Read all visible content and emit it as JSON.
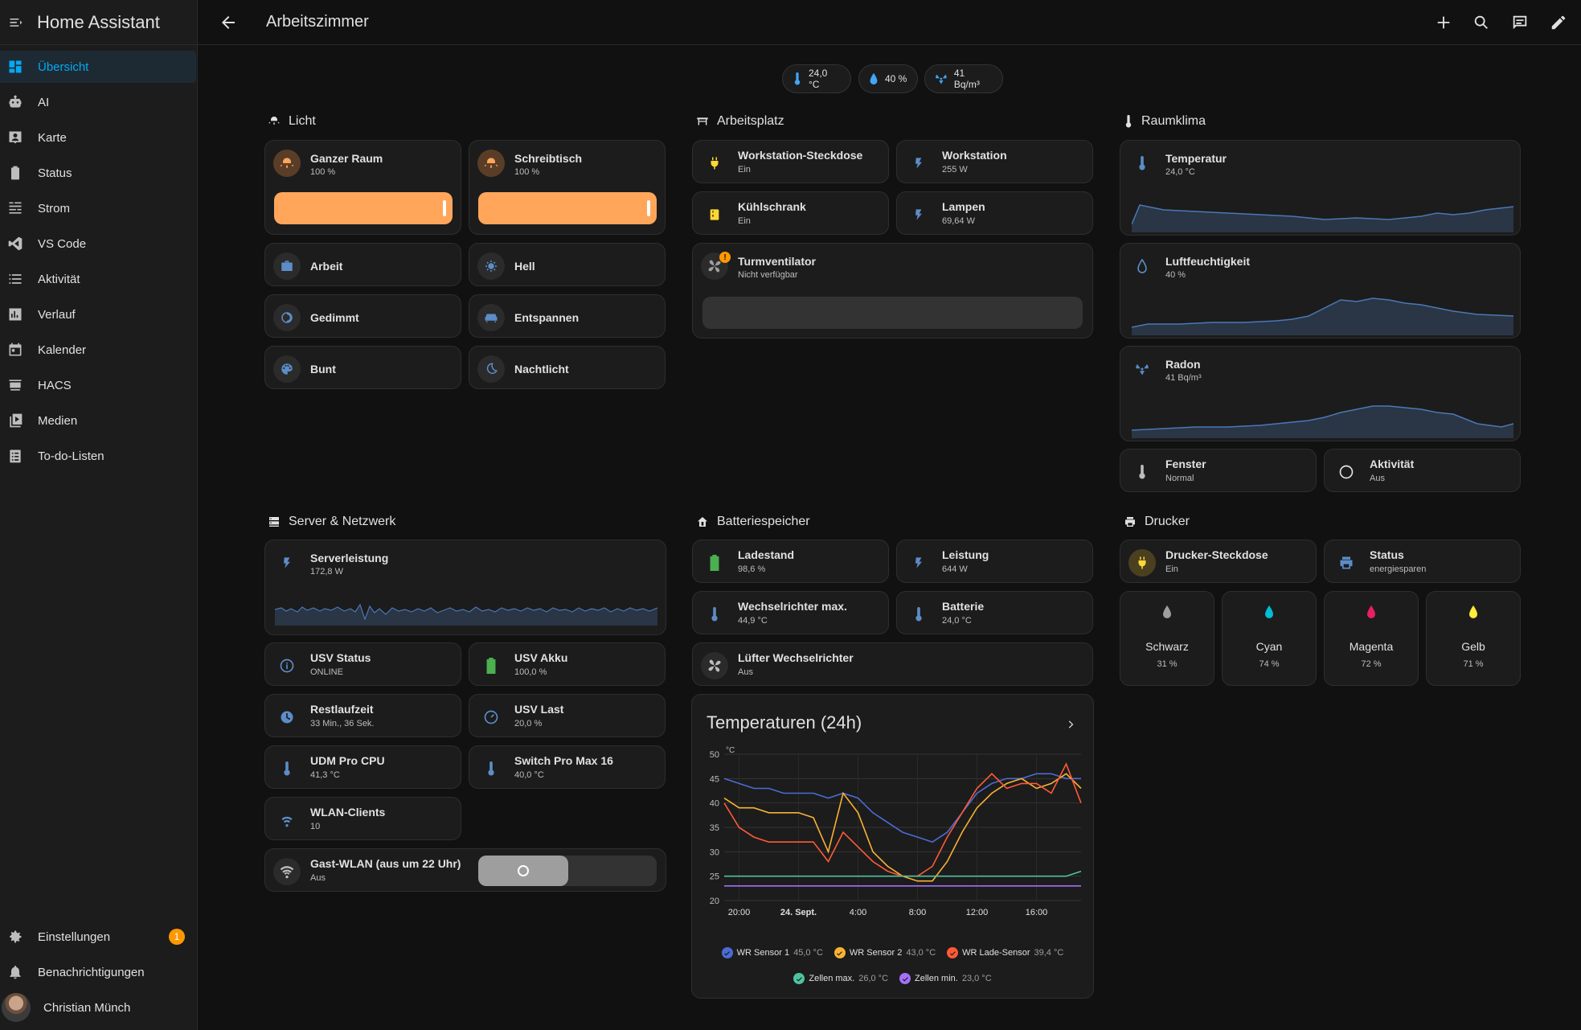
{
  "app": {
    "title": "Home Assistant"
  },
  "sidebar": {
    "items": [
      {
        "label": "Übersicht",
        "icon": "dashboard-icon"
      },
      {
        "label": "AI",
        "icon": "robot-icon"
      },
      {
        "label": "Karte",
        "icon": "map-icon"
      },
      {
        "label": "Status",
        "icon": "battery-icon"
      },
      {
        "label": "Strom",
        "icon": "energy-icon"
      },
      {
        "label": "VS Code",
        "icon": "vscode-icon"
      },
      {
        "label": "Aktivität",
        "icon": "list-icon"
      },
      {
        "label": "Verlauf",
        "icon": "chart-icon"
      },
      {
        "label": "Kalender",
        "icon": "calendar-icon"
      },
      {
        "label": "HACS",
        "icon": "hacs-icon"
      },
      {
        "label": "Medien",
        "icon": "media-icon"
      },
      {
        "label": "To-do-Listen",
        "icon": "todo-icon"
      }
    ],
    "settings": {
      "label": "Einstellungen",
      "badge": "1"
    },
    "notifications": {
      "label": "Benachrichtigungen"
    },
    "user": {
      "name": "Christian Münch"
    }
  },
  "header": {
    "title": "Arbeitszimmer"
  },
  "badges": {
    "temperature": "24,0 °C",
    "humidity": "40 %",
    "radon": "41 Bq/m³"
  },
  "licht": {
    "title": "Licht",
    "ganzer_raum": {
      "name": "Ganzer Raum",
      "state": "100 %",
      "brightness": 100
    },
    "schreibtisch": {
      "name": "Schreibtisch",
      "state": "100 %",
      "brightness": 100
    },
    "scenes": [
      "Arbeit",
      "Hell",
      "Gedimmt",
      "Entspannen",
      "Bunt",
      "Nachtlicht"
    ]
  },
  "arbeitsplatz": {
    "title": "Arbeitsplatz",
    "workstation_steckdose": {
      "name": "Workstation-Steckdose",
      "state": "Ein"
    },
    "workstation": {
      "name": "Workstation",
      "state": "255 W"
    },
    "kuehlschrank": {
      "name": "Kühlschrank",
      "state": "Ein"
    },
    "lampen": {
      "name": "Lampen",
      "state": "69,64 W"
    },
    "turmventilator": {
      "name": "Turmventilator",
      "state": "Nicht verfügbar"
    }
  },
  "raumklima": {
    "title": "Raumklima",
    "temperatur": {
      "name": "Temperatur",
      "state": "24,0 °C"
    },
    "luftfeuchtigkeit": {
      "name": "Luftfeuchtigkeit",
      "state": "40 %"
    },
    "radon": {
      "name": "Radon",
      "state": "41 Bq/m³"
    },
    "fenster": {
      "name": "Fenster",
      "state": "Normal"
    },
    "aktivitaet": {
      "name": "Aktivität",
      "state": "Aus"
    }
  },
  "server": {
    "title": "Server & Netzwerk",
    "serverleistung": {
      "name": "Serverleistung",
      "state": "172,8 W"
    },
    "usv_status": {
      "name": "USV Status",
      "state": "ONLINE"
    },
    "usv_akku": {
      "name": "USV Akku",
      "state": "100,0 %"
    },
    "restlaufzeit": {
      "name": "Restlaufzeit",
      "state": "33 Min., 36 Sek."
    },
    "usv_last": {
      "name": "USV Last",
      "state": "20,0 %"
    },
    "udm_cpu": {
      "name": "UDM Pro CPU",
      "state": "41,3 °C"
    },
    "switch_pro": {
      "name": "Switch Pro Max 16",
      "state": "40,0 °C"
    },
    "wlan_clients": {
      "name": "WLAN-Clients",
      "state": "10"
    },
    "gast_wlan": {
      "name": "Gast-WLAN (aus um 22 Uhr)",
      "state": "Aus"
    }
  },
  "batterie": {
    "title": "Batteriespeicher",
    "ladestand": {
      "name": "Ladestand",
      "state": "98,6 %"
    },
    "leistung": {
      "name": "Leistung",
      "state": "644 W"
    },
    "wr_max": {
      "name": "Wechselrichter max.",
      "state": "44,9 °C"
    },
    "batterie": {
      "name": "Batterie",
      "state": "24,0 °C"
    },
    "luefter": {
      "name": "Lüfter Wechselrichter",
      "state": "Aus"
    }
  },
  "drucker": {
    "title": "Drucker",
    "steckdose": {
      "name": "Drucker-Steckdose",
      "state": "Ein"
    },
    "status": {
      "name": "Status",
      "state": "energiesparen"
    },
    "inks": [
      {
        "name": "Schwarz",
        "value": "31 %",
        "color": "#9e9e9e"
      },
      {
        "name": "Cyan",
        "value": "74 %",
        "color": "#00bcd4"
      },
      {
        "name": "Magenta",
        "value": "72 %",
        "color": "#e91e63"
      },
      {
        "name": "Gelb",
        "value": "71 %",
        "color": "#ffeb3b"
      }
    ]
  },
  "colors": {
    "accent": "#03a9f4",
    "light_on": "#ffa65a",
    "warning": "#ff9800"
  },
  "chart_data": {
    "type": "line",
    "title": "Temperaturen (24h)",
    "ylabel": "°C",
    "ylim": [
      20,
      50
    ],
    "yticks": [
      "50",
      "45",
      "40",
      "35",
      "30",
      "25",
      "20"
    ],
    "xticks": [
      "20:00",
      "24. Sept.",
      "4:00",
      "8:00",
      "12:00",
      "16:00"
    ],
    "x": [
      19,
      20,
      21,
      22,
      23,
      24,
      25,
      26,
      27,
      28,
      29,
      30,
      31,
      32,
      33,
      34,
      35,
      36,
      37,
      38,
      39,
      40,
      41,
      42,
      43
    ],
    "series": [
      {
        "name": "WR Sensor 1",
        "value": "45,0 °C",
        "color": "#4a6cd4",
        "values": [
          45,
          44,
          43,
          43,
          42,
          42,
          42,
          41,
          42,
          41,
          38,
          36,
          34,
          33,
          32,
          34,
          38,
          42,
          44,
          45,
          45,
          46,
          46,
          45,
          45
        ]
      },
      {
        "name": "WR Sensor 2",
        "value": "43,0 °C",
        "color": "#f9b233",
        "values": [
          41,
          39,
          39,
          38,
          38,
          38,
          37,
          30,
          42,
          38,
          30,
          27,
          25,
          24,
          24,
          28,
          34,
          39,
          42,
          44,
          45,
          43,
          44,
          46,
          43
        ]
      },
      {
        "name": "WR Lade-Sensor",
        "value": "39,4 °C",
        "color": "#ff5a36",
        "values": [
          40,
          35,
          33,
          32,
          32,
          32,
          32,
          28,
          34,
          31,
          28,
          26,
          25,
          25,
          27,
          33,
          38,
          43,
          46,
          43,
          44,
          44,
          42,
          48,
          40
        ]
      },
      {
        "name": "Zellen max.",
        "value": "26,0 °C",
        "color": "#4fc3a1",
        "values": [
          25,
          25,
          25,
          25,
          25,
          25,
          25,
          25,
          25,
          25,
          25,
          25,
          25,
          25,
          25,
          25,
          25,
          25,
          25,
          25,
          25,
          25,
          25,
          25,
          26
        ]
      },
      {
        "name": "Zellen min.",
        "value": "23,0 °C",
        "color": "#a370f7",
        "values": [
          23,
          23,
          23,
          23,
          23,
          23,
          23,
          23,
          23,
          23,
          23,
          23,
          23,
          23,
          23,
          23,
          23,
          23,
          23,
          23,
          23,
          23,
          23,
          23,
          23
        ]
      }
    ]
  }
}
